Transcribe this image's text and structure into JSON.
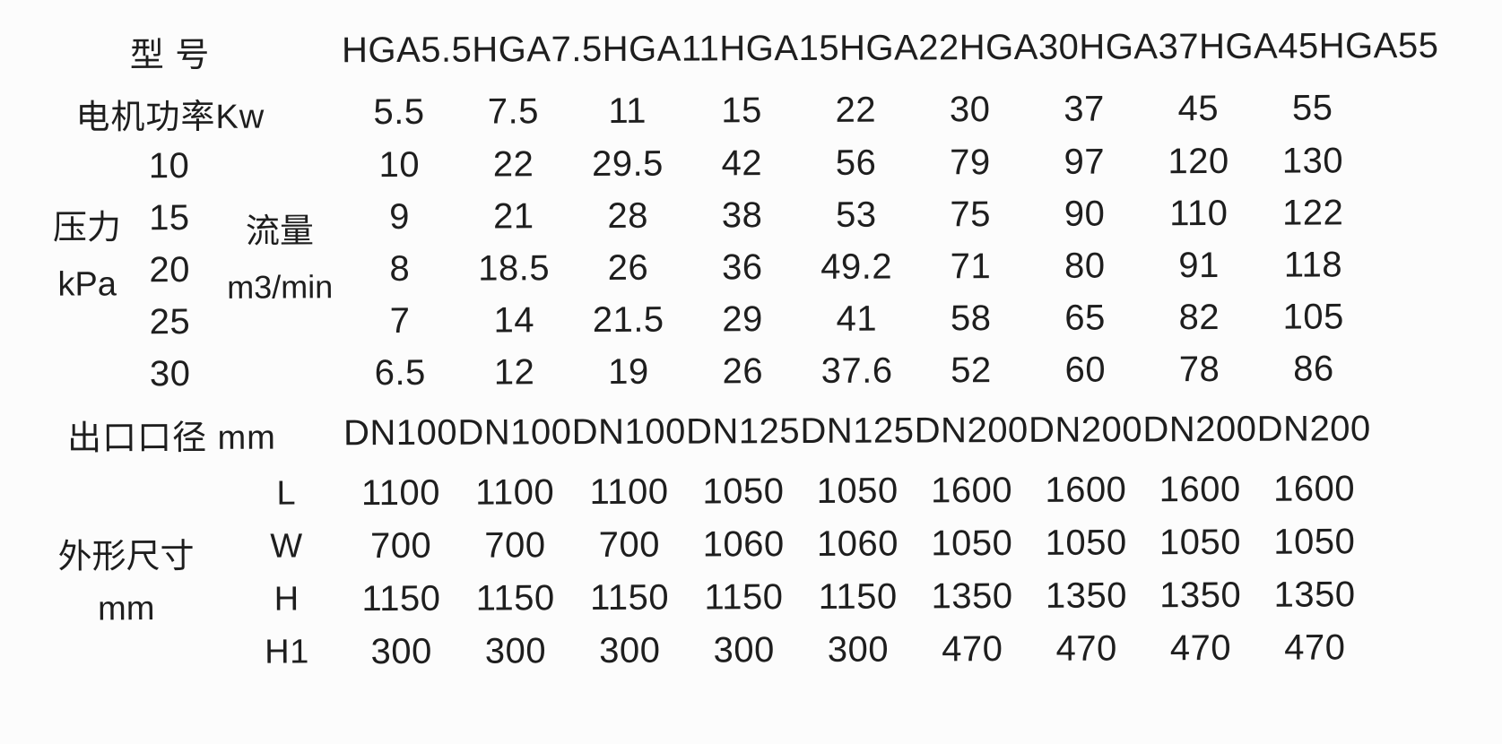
{
  "page": {
    "background_color": "#fcfcfc",
    "text_color": "#1e1e1e"
  },
  "table": {
    "header": {
      "label": "型  号",
      "models": [
        "HGA5.5",
        "HGA7.5",
        "HGA11",
        "HGA15",
        "HGA22",
        "HGA30",
        "HGA37",
        "HGA45",
        "HGA55"
      ]
    },
    "power_row": {
      "label": "电机功率Kw",
      "values": [
        "5.5",
        "7.5",
        "11",
        "15",
        "22",
        "30",
        "37",
        "45",
        "55"
      ]
    },
    "flow_section": {
      "pressure_label": "压力",
      "pressure_unit": "kPa",
      "flow_label": "流量",
      "flow_unit": "m3/min",
      "rows": [
        {
          "pressure": "10",
          "values": [
            "10",
            "22",
            "29.5",
            "42",
            "56",
            "79",
            "97",
            "120",
            "130"
          ]
        },
        {
          "pressure": "15",
          "values": [
            "9",
            "21",
            "28",
            "38",
            "53",
            "75",
            "90",
            "110",
            "122"
          ]
        },
        {
          "pressure": "20",
          "values": [
            "8",
            "18.5",
            "26",
            "36",
            "49.2",
            "71",
            "80",
            "91",
            "118"
          ]
        },
        {
          "pressure": "25",
          "values": [
            "7",
            "14",
            "21.5",
            "29",
            "41",
            "58",
            "65",
            "82",
            "105"
          ]
        },
        {
          "pressure": "30",
          "values": [
            "6.5",
            "12",
            "19",
            "26",
            "37.6",
            "52",
            "60",
            "78",
            "86"
          ]
        }
      ]
    },
    "outlet_row": {
      "label": "出口口径 mm",
      "values": [
        "DN100",
        "DN100",
        "DN100",
        "DN125",
        "DN125",
        "DN200",
        "DN200",
        "DN200",
        "DN200"
      ]
    },
    "dimension_section": {
      "label": "外形尺寸",
      "unit": "mm",
      "rows": [
        {
          "dim": "L",
          "values": [
            "1100",
            "1100",
            "1100",
            "1050",
            "1050",
            "1600",
            "1600",
            "1600",
            "1600"
          ]
        },
        {
          "dim": "W",
          "values": [
            "700",
            "700",
            "700",
            "1060",
            "1060",
            "1050",
            "1050",
            "1050",
            "1050"
          ]
        },
        {
          "dim": "H",
          "values": [
            "1150",
            "1150",
            "1150",
            "1150",
            "1150",
            "1350",
            "1350",
            "1350",
            "1350"
          ]
        },
        {
          "dim": "H1",
          "values": [
            "300",
            "300",
            "300",
            "300",
            "300",
            "470",
            "470",
            "470",
            "470"
          ]
        }
      ]
    }
  }
}
